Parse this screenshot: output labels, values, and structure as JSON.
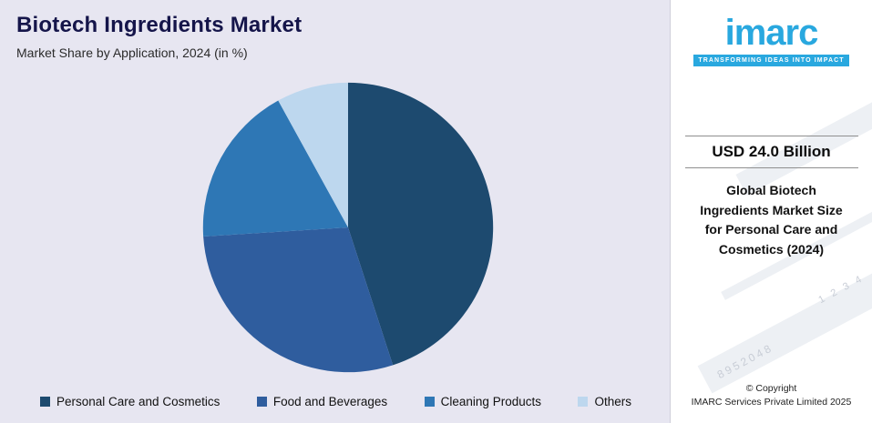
{
  "header": {
    "title": "Biotech Ingredients Market",
    "subtitle": "Market Share by Application, 2024 (in %)"
  },
  "chart_data": {
    "type": "pie",
    "title": "Biotech Ingredients Market",
    "subtitle": "Market Share by Application, 2024 (in %)",
    "labels": [
      "Personal Care and Cosmetics",
      "Food and Beverages",
      "Cleaning Products",
      "Others"
    ],
    "values": [
      45,
      29,
      18,
      8
    ],
    "colors": [
      "#1d4a6f",
      "#2f5d9e",
      "#2e77b5",
      "#bdd7ee"
    ],
    "start_angle_deg": 0,
    "direction": "clockwise",
    "legend_position": "bottom"
  },
  "sidebar": {
    "brand_color": "#29a8df",
    "logo_text": "imarc",
    "tagline": "TRANSFORMING IDEAS INTO IMPACT",
    "stat_value": "USD 24.0 Billion",
    "stat_label": "Global Biotech Ingredients Market Size for Personal Care and Cosmetics (2024)",
    "watermark_digits1": "1 2 3 4",
    "watermark_digits2": "8952048",
    "copyright_line1": "© Copyright",
    "copyright_line2": "IMARC Services Private Limited 2025"
  }
}
